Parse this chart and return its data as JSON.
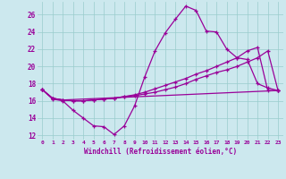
{
  "xlabel": "Windchill (Refroidissement éolien,°C)",
  "bg_color": "#cce8ee",
  "line_color": "#990099",
  "grid_color": "#99cccc",
  "xlim": [
    -0.5,
    23.5
  ],
  "ylim": [
    11.5,
    27.5
  ],
  "xticks": [
    0,
    1,
    2,
    3,
    4,
    5,
    6,
    7,
    8,
    9,
    10,
    11,
    12,
    13,
    14,
    15,
    16,
    17,
    18,
    19,
    20,
    21,
    22,
    23
  ],
  "yticks": [
    12,
    14,
    16,
    18,
    20,
    22,
    24,
    26
  ],
  "line1_x": [
    0,
    1,
    2,
    3,
    4,
    5,
    6,
    7,
    8,
    9,
    10,
    11,
    12,
    13,
    14,
    15,
    16,
    17,
    18,
    19,
    20,
    21,
    22,
    23
  ],
  "line1_y": [
    17.3,
    16.2,
    16.0,
    14.9,
    14.0,
    13.1,
    13.0,
    12.1,
    13.1,
    15.4,
    18.8,
    21.8,
    23.9,
    25.5,
    27.0,
    26.5,
    24.1,
    24.0,
    22.0,
    21.0,
    20.8,
    18.0,
    17.5,
    17.2
  ],
  "line2_x": [
    0,
    1,
    2,
    3,
    4,
    5,
    6,
    7,
    8,
    9,
    10,
    11,
    12,
    13,
    14,
    15,
    16,
    17,
    18,
    19,
    20,
    21,
    22,
    23
  ],
  "line2_y": [
    17.3,
    16.3,
    16.1,
    16.0,
    16.0,
    16.1,
    16.2,
    16.3,
    16.5,
    16.6,
    16.8,
    17.0,
    17.3,
    17.6,
    18.0,
    18.5,
    18.9,
    19.3,
    19.6,
    20.0,
    20.5,
    21.0,
    21.8,
    17.2
  ],
  "line3_x": [
    0,
    1,
    2,
    3,
    4,
    5,
    6,
    7,
    8,
    9,
    10,
    11,
    12,
    13,
    14,
    15,
    16,
    17,
    18,
    19,
    20,
    21,
    22,
    23
  ],
  "line3_y": [
    17.3,
    16.3,
    16.1,
    16.0,
    16.0,
    16.1,
    16.2,
    16.3,
    16.5,
    16.7,
    17.0,
    17.4,
    17.8,
    18.2,
    18.6,
    19.1,
    19.5,
    20.0,
    20.5,
    21.0,
    21.8,
    22.2,
    17.2,
    17.2
  ],
  "line4_x": [
    0,
    1,
    2,
    23
  ],
  "line4_y": [
    17.3,
    16.3,
    16.1,
    17.2
  ]
}
